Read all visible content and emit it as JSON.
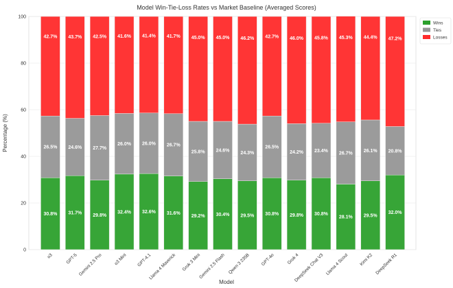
{
  "chart_data": {
    "type": "bar",
    "stacked": true,
    "title": "Model Win-Tie-Loss Rates vs Market Baseline (Averaged Scores)",
    "xlabel": "Model",
    "ylabel": "Percentage (%)",
    "ylim": [
      0,
      100
    ],
    "yticks": [
      0,
      20,
      40,
      60,
      80,
      100
    ],
    "grid": true,
    "legend_position": "top-right",
    "categories": [
      "o3",
      "GPT-5",
      "Gemini 2.5 Pro",
      "o3 Mini",
      "GPT-4.1",
      "Llama 4 Maverick",
      "Grok 3 Mini",
      "Gemini 2.5 Flash",
      "Qwen 3 235B",
      "GPT-4o",
      "Grok 4",
      "DeepSeek Chat V3",
      "Llama 4 Scout",
      "Kimi K2",
      "DeepSeek R1"
    ],
    "series": [
      {
        "name": "Wins",
        "color": "#2ca02c",
        "values": [
          30.8,
          31.7,
          29.8,
          32.4,
          32.6,
          31.6,
          29.2,
          30.4,
          29.5,
          30.8,
          29.8,
          30.8,
          28.1,
          29.5,
          32.0
        ]
      },
      {
        "name": "Ties",
        "color": "#969696",
        "values": [
          26.5,
          24.6,
          27.7,
          26.0,
          26.0,
          26.7,
          25.8,
          24.6,
          24.3,
          26.5,
          24.2,
          23.4,
          26.7,
          26.1,
          20.8
        ]
      },
      {
        "name": "Losses",
        "color": "#ff2a2a",
        "values": [
          42.7,
          43.7,
          42.5,
          41.6,
          41.4,
          41.7,
          45.0,
          45.0,
          46.2,
          42.7,
          46.0,
          45.8,
          45.3,
          44.4,
          47.2
        ]
      }
    ]
  }
}
